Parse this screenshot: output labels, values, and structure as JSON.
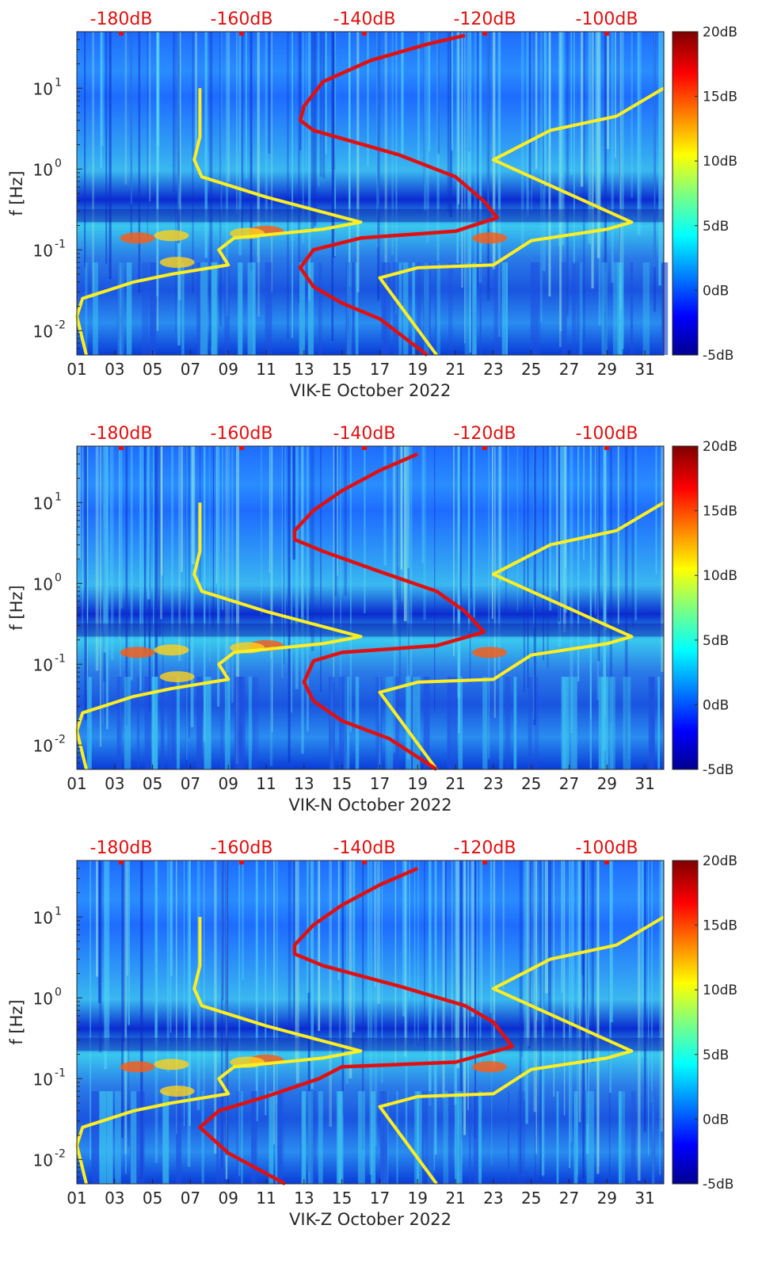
{
  "figure": {
    "top_db_labels": [
      "-180dB",
      "-160dB",
      "-140dB",
      "-120dB",
      "-100dB"
    ],
    "x_ticks": [
      "01",
      "03",
      "05",
      "07",
      "09",
      "11",
      "13",
      "15",
      "17",
      "19",
      "21",
      "23",
      "25",
      "27",
      "29",
      "31"
    ],
    "y_ticks": [
      {
        "base": "10",
        "exp": "1",
        "value": 10
      },
      {
        "base": "10",
        "exp": "0",
        "value": 1
      },
      {
        "base": "10",
        "exp": "-1",
        "value": 0.1
      },
      {
        "base": "10",
        "exp": "-2",
        "value": 0.01
      }
    ],
    "ylabel": "f [Hz]",
    "colorbar_labels": [
      "20dB",
      "15dB",
      "10dB",
      "5dB",
      "0dB",
      "-5dB"
    ],
    "colors": {
      "low_noise_model": "#ffee22",
      "station_median": "#e01010",
      "db_label": "#e01010"
    }
  },
  "chart_data": [
    {
      "type": "heatmap",
      "xlabel": "VIK-E October 2022",
      "ylabel": "f [Hz]",
      "x_range_days": [
        1,
        32
      ],
      "y_range_hz": [
        0.005,
        50
      ],
      "y_scale": "log",
      "colorbar_range_db": [
        -5,
        20
      ],
      "colormap": "jet",
      "top_axis_db": [
        -180,
        -160,
        -140,
        -120,
        -100
      ],
      "series": [
        {
          "color": "#ffee22",
          "points": [
            [
              7.5,
              10
            ],
            [
              7.5,
              2.5
            ],
            [
              7.2,
              1.3
            ],
            [
              7.6,
              0.8
            ],
            [
              11,
              0.45
            ],
            [
              16,
              0.22
            ],
            [
              14,
              0.18
            ],
            [
              9.3,
              0.14
            ],
            [
              8.5,
              0.1
            ],
            [
              9,
              0.065
            ],
            [
              6,
              0.05
            ],
            [
              4,
              0.04
            ],
            [
              1.3,
              0.025
            ],
            [
              1,
              0.015
            ],
            [
              1.5,
              0.005
            ]
          ]
        },
        {
          "color": "#ffee22",
          "points": [
            [
              32,
              10
            ],
            [
              29.5,
              4.5
            ],
            [
              26,
              3.0
            ],
            [
              23,
              1.3
            ],
            [
              30.3,
              0.22
            ],
            [
              29,
              0.18
            ],
            [
              25,
              0.13
            ],
            [
              23,
              0.065
            ],
            [
              19,
              0.06
            ],
            [
              17,
              0.045
            ],
            [
              20,
              0.005
            ]
          ]
        },
        {
          "color": "#e01010",
          "points": [
            [
              21.5,
              45
            ],
            [
              19.5,
              35
            ],
            [
              16.5,
              22
            ],
            [
              14,
              12
            ],
            [
              13,
              6
            ],
            [
              12.8,
              4
            ],
            [
              13.5,
              3
            ],
            [
              18,
              1.5
            ],
            [
              21,
              0.8
            ],
            [
              22.5,
              0.4
            ],
            [
              23.2,
              0.25
            ],
            [
              21,
              0.17
            ],
            [
              16,
              0.14
            ],
            [
              13.5,
              0.1
            ],
            [
              12.8,
              0.06
            ],
            [
              13.5,
              0.035
            ],
            [
              15,
              0.022
            ],
            [
              17,
              0.014
            ],
            [
              19.5,
              0.005
            ]
          ]
        }
      ]
    },
    {
      "type": "heatmap",
      "xlabel": "VIK-N October 2022",
      "ylabel": "f [Hz]",
      "x_range_days": [
        1,
        32
      ],
      "y_range_hz": [
        0.005,
        50
      ],
      "y_scale": "log",
      "colorbar_range_db": [
        -5,
        20
      ],
      "colormap": "jet",
      "top_axis_db": [
        -180,
        -160,
        -140,
        -120,
        -100
      ],
      "series": [
        {
          "color": "#ffee22",
          "points": [
            [
              7.5,
              10
            ],
            [
              7.5,
              2.5
            ],
            [
              7.2,
              1.3
            ],
            [
              7.6,
              0.8
            ],
            [
              11,
              0.45
            ],
            [
              16,
              0.22
            ],
            [
              14,
              0.18
            ],
            [
              9.3,
              0.14
            ],
            [
              8.5,
              0.1
            ],
            [
              9,
              0.065
            ],
            [
              6,
              0.05
            ],
            [
              4,
              0.04
            ],
            [
              1.3,
              0.025
            ],
            [
              1,
              0.015
            ],
            [
              1.5,
              0.005
            ]
          ]
        },
        {
          "color": "#ffee22",
          "points": [
            [
              32,
              10
            ],
            [
              29.5,
              4.5
            ],
            [
              26,
              3.0
            ],
            [
              23,
              1.3
            ],
            [
              30.3,
              0.22
            ],
            [
              29,
              0.18
            ],
            [
              25,
              0.13
            ],
            [
              23,
              0.065
            ],
            [
              19,
              0.06
            ],
            [
              17,
              0.045
            ],
            [
              20,
              0.005
            ]
          ]
        },
        {
          "color": "#e01010",
          "points": [
            [
              19,
              40
            ],
            [
              17,
              25
            ],
            [
              15,
              14
            ],
            [
              13.5,
              8
            ],
            [
              12.5,
              4.5
            ],
            [
              12.5,
              3.5
            ],
            [
              14,
              2.5
            ],
            [
              17,
              1.4
            ],
            [
              20,
              0.8
            ],
            [
              21.5,
              0.45
            ],
            [
              22.5,
              0.25
            ],
            [
              20,
              0.17
            ],
            [
              15,
              0.14
            ],
            [
              13.5,
              0.11
            ],
            [
              13,
              0.06
            ],
            [
              13.5,
              0.035
            ],
            [
              15,
              0.02
            ],
            [
              17.5,
              0.012
            ],
            [
              20,
              0.005
            ]
          ]
        }
      ]
    },
    {
      "type": "heatmap",
      "xlabel": "VIK-Z October 2022",
      "ylabel": "f [Hz]",
      "x_range_days": [
        1,
        32
      ],
      "y_range_hz": [
        0.005,
        50
      ],
      "y_scale": "log",
      "colorbar_range_db": [
        -5,
        20
      ],
      "colormap": "jet",
      "top_axis_db": [
        -180,
        -160,
        -140,
        -120,
        -100
      ],
      "series": [
        {
          "color": "#ffee22",
          "points": [
            [
              7.5,
              10
            ],
            [
              7.5,
              2.5
            ],
            [
              7.2,
              1.3
            ],
            [
              7.6,
              0.8
            ],
            [
              11,
              0.45
            ],
            [
              16,
              0.22
            ],
            [
              14,
              0.18
            ],
            [
              9.3,
              0.14
            ],
            [
              8.5,
              0.1
            ],
            [
              9,
              0.065
            ],
            [
              6,
              0.05
            ],
            [
              4,
              0.04
            ],
            [
              1.3,
              0.025
            ],
            [
              1,
              0.015
            ],
            [
              1.5,
              0.005
            ]
          ]
        },
        {
          "color": "#ffee22",
          "points": [
            [
              32,
              10
            ],
            [
              29.5,
              4.5
            ],
            [
              26,
              3.0
            ],
            [
              23,
              1.3
            ],
            [
              30.3,
              0.22
            ],
            [
              29,
              0.18
            ],
            [
              25,
              0.13
            ],
            [
              23,
              0.065
            ],
            [
              19,
              0.06
            ],
            [
              17,
              0.045
            ],
            [
              20,
              0.005
            ]
          ]
        },
        {
          "color": "#e01010",
          "points": [
            [
              19,
              40
            ],
            [
              17,
              25
            ],
            [
              15,
              14
            ],
            [
              13.5,
              8
            ],
            [
              12.5,
              4.5
            ],
            [
              12.5,
              3.5
            ],
            [
              14,
              2.5
            ],
            [
              18,
              1.4
            ],
            [
              21.5,
              0.8
            ],
            [
              23,
              0.5
            ],
            [
              24,
              0.25
            ],
            [
              21,
              0.16
            ],
            [
              15,
              0.14
            ],
            [
              13.8,
              0.1
            ],
            [
              11,
              0.06
            ],
            [
              8.5,
              0.04
            ],
            [
              7.5,
              0.025
            ],
            [
              9,
              0.012
            ],
            [
              12,
              0.005
            ]
          ]
        }
      ]
    }
  ]
}
